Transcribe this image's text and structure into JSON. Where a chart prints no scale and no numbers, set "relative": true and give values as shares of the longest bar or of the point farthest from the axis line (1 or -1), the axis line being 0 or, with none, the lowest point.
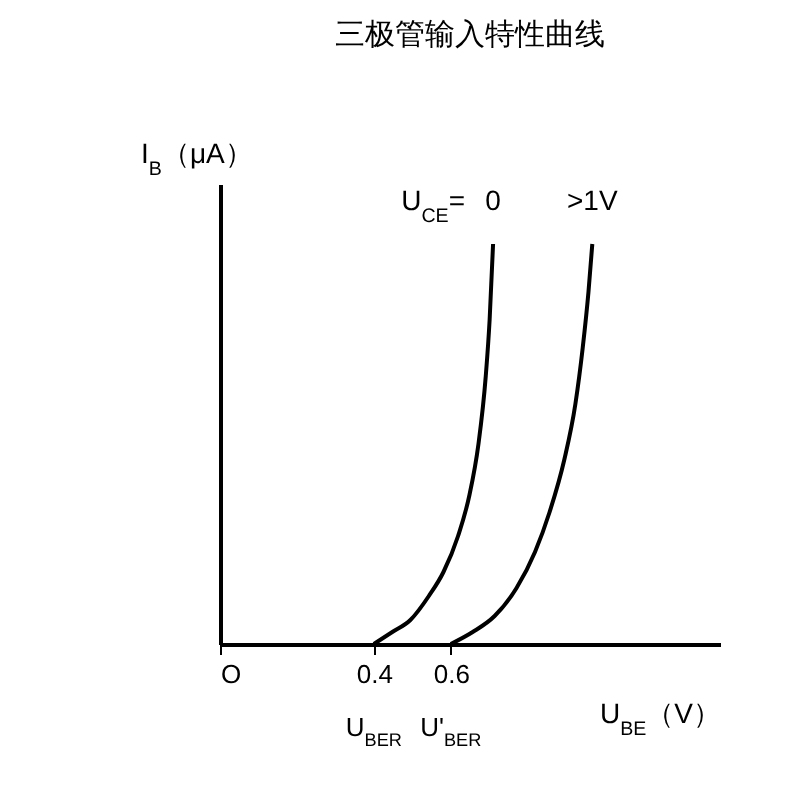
{
  "chart_data": {
    "type": "line",
    "title": "三极管输入特性曲线",
    "xlabel": "U$_{BE}$（V）",
    "ylabel": "I$_{B}$（μA）",
    "legend_title": "U$_{CE}$=",
    "relative": true,
    "xlim": [
      0,
      1.3
    ],
    "xticks": [
      {
        "value": 0,
        "label": "O"
      },
      0.4,
      0.6
    ],
    "series": [
      {
        "name": "0",
        "color": "#000000",
        "x": [
          0.4,
          0.448,
          0.495,
          0.543,
          0.581,
          0.619,
          0.648,
          0.672,
          0.691,
          0.701,
          0.71
        ],
        "values": [
          0,
          0.03,
          0.06,
          0.12,
          0.18,
          0.27,
          0.37,
          0.5,
          0.67,
          0.81,
          1
        ]
      },
      {
        "name": ">1V",
        "color": "#000000",
        "x": [
          0.6,
          0.657,
          0.714,
          0.771,
          0.819,
          0.857,
          0.895,
          0.924,
          0.943,
          0.958,
          0.968
        ],
        "values": [
          0,
          0.03,
          0.07,
          0.14,
          0.23,
          0.33,
          0.46,
          0.6,
          0.74,
          0.88,
          1
        ]
      }
    ],
    "annotations": [
      {
        "text": "U$_{BER}$",
        "x": 0.4,
        "y": 0
      },
      {
        "text": "U'$_{BER}$",
        "x": 0.6,
        "y": 0
      }
    ]
  }
}
